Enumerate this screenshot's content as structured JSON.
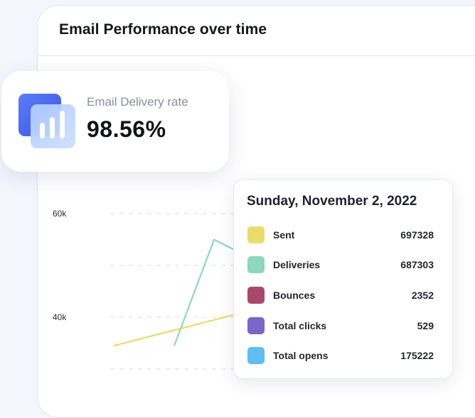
{
  "card": {
    "title": "Email Performance over time"
  },
  "kpi": {
    "label": "Email Delivery rate",
    "value": "98.56%",
    "icon": "bar-chart-icon"
  },
  "chart_data": {
    "type": "line",
    "y_ticks": [
      "60k",
      "40k"
    ],
    "y_tick_values": [
      60000,
      40000
    ],
    "ylim": [
      30000,
      60000
    ],
    "grid": true,
    "series": [
      {
        "name": "Sent",
        "color": "#ebdb6a",
        "x": [
          0,
          0.5,
          1
        ],
        "values": [
          34500,
          37500,
          40500
        ]
      },
      {
        "name": "Deliveries",
        "color": "#8ed8bf",
        "x": [
          0.5,
          0.83,
          1
        ],
        "values": [
          34500,
          55000,
          53000
        ]
      }
    ]
  },
  "tooltip": {
    "date": "Sunday, November 2, 2022",
    "rows": [
      {
        "label": "Sent",
        "value": "697328",
        "color": "#ebdb6a"
      },
      {
        "label": "Deliveries",
        "value": "687303",
        "color": "#8ed8bf"
      },
      {
        "label": "Bounces",
        "value": "2352",
        "color": "#a94869"
      },
      {
        "label": "Total clicks",
        "value": "529",
        "color": "#7a66c9"
      },
      {
        "label": "Total opens",
        "value": "175222",
        "color": "#5fbdf3"
      }
    ]
  }
}
